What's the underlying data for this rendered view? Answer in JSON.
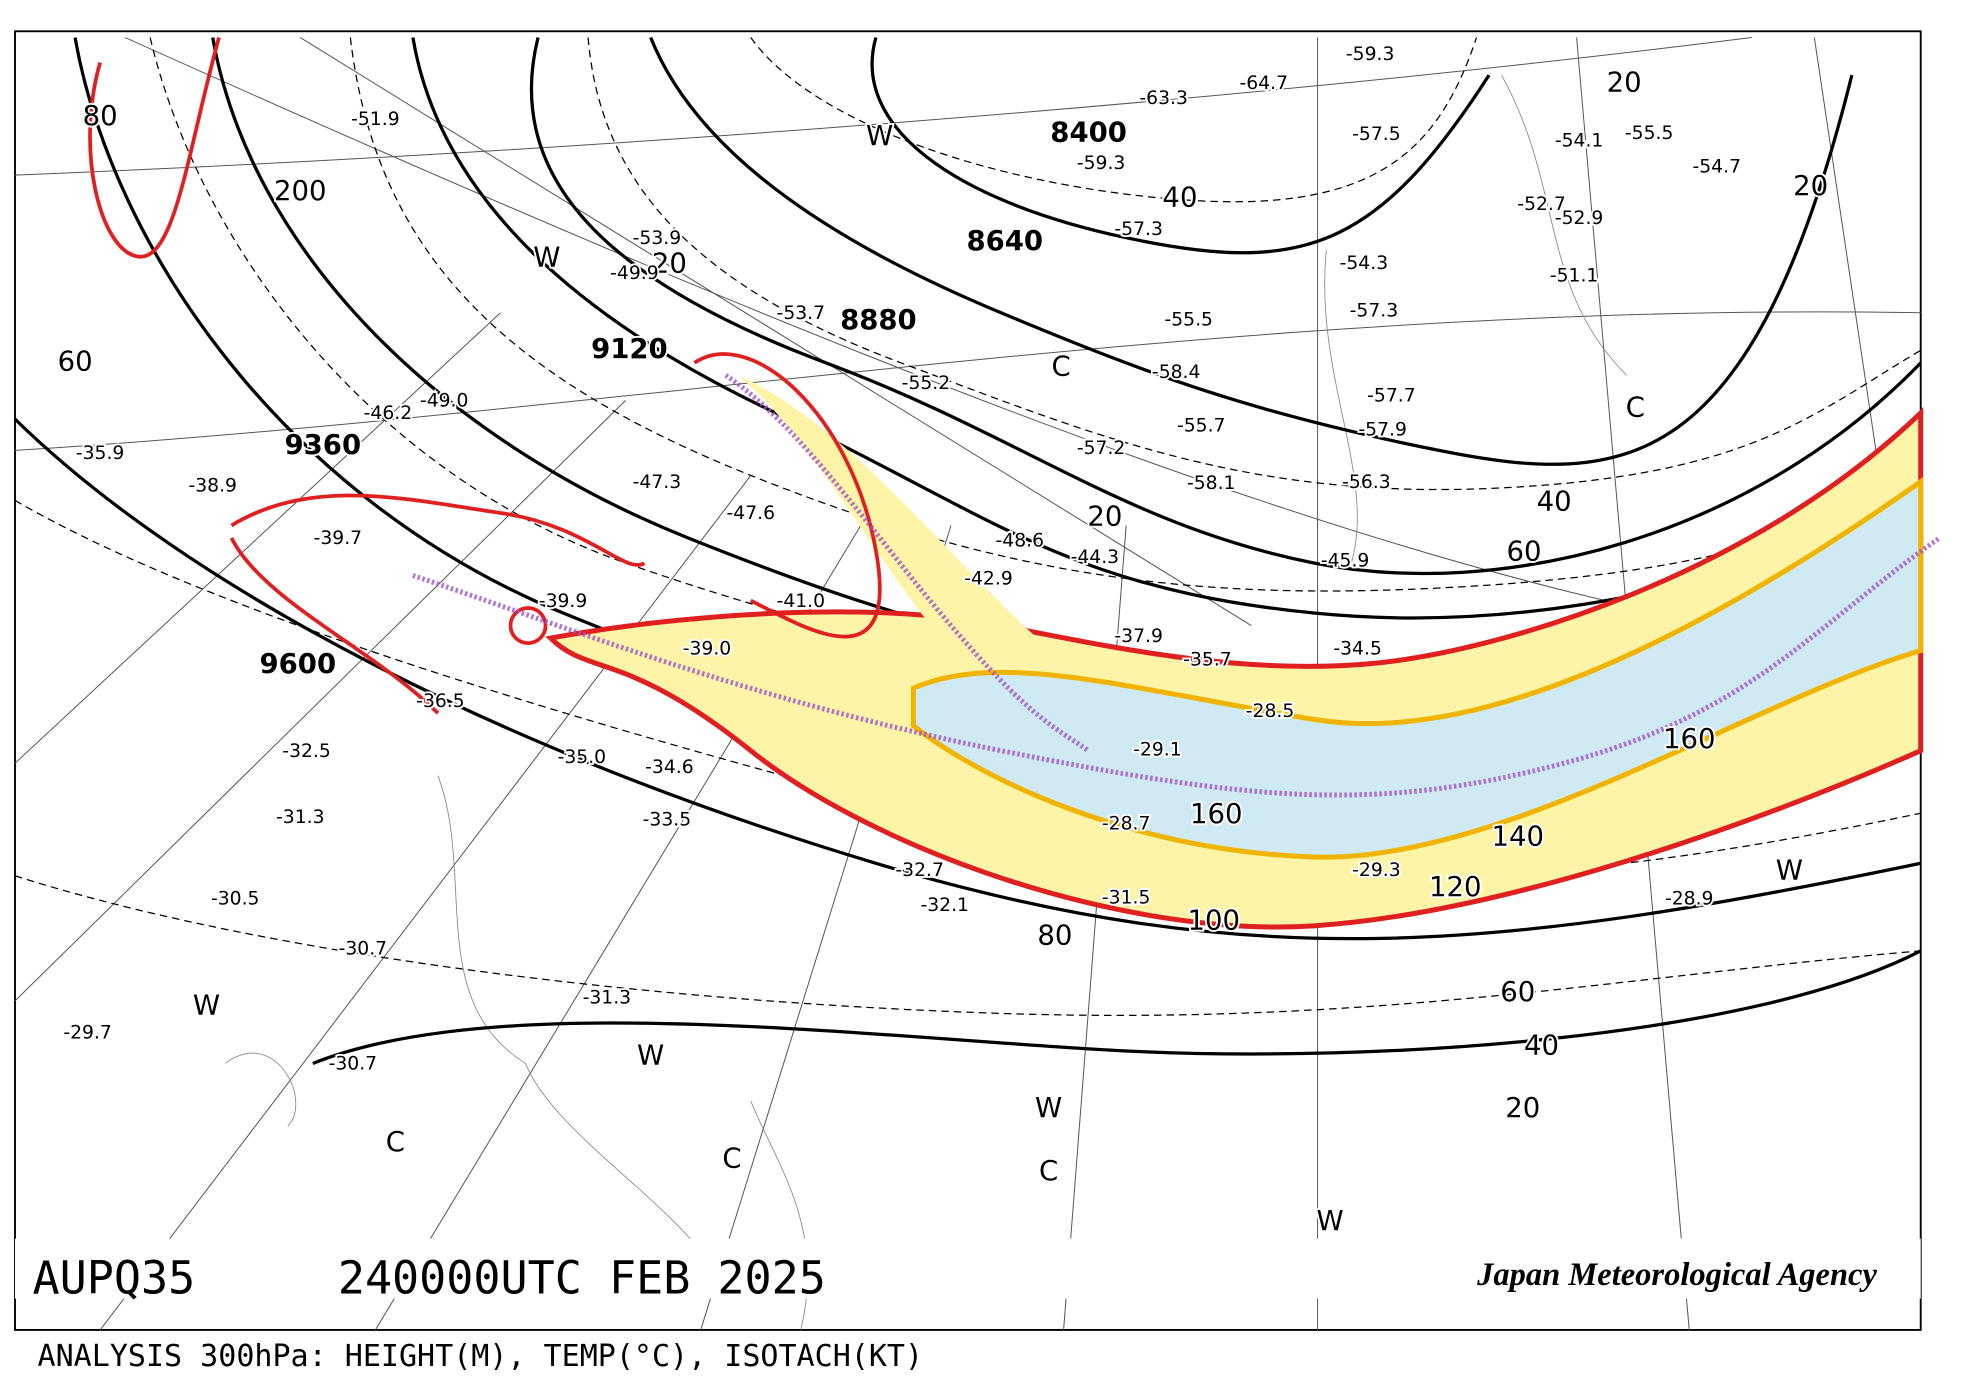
{
  "header": {
    "chart_id": "AUPQ35",
    "time": "240000UTC FEB 2025",
    "agency": "Japan Meteorological Agency",
    "caption": "ANALYSIS 300hPa: HEIGHT(M), TEMP(°C), ISOTACH(KT)"
  },
  "map": {
    "height_labels": [
      "8400",
      "8640",
      "8880",
      "9120",
      "9360",
      "9600"
    ],
    "isotach_labels": [
      "20",
      "20",
      "20",
      "20",
      "20",
      "40",
      "40",
      "40",
      "60",
      "60",
      "60",
      "80",
      "80",
      "100",
      "120",
      "140",
      "160",
      "160",
      "200"
    ],
    "pressure_centers": [
      "W",
      "W",
      "W",
      "W",
      "W",
      "W",
      "W",
      "C",
      "C",
      "C",
      "C",
      "C"
    ],
    "temperature_labels": [
      "-59.3",
      "-63.3",
      "-64.7",
      "-57.5",
      "-54.1",
      "-55.5",
      "-54.7",
      "-52.7",
      "-52.9",
      "-51.1",
      "-54.3",
      "-57.3",
      "-57.7",
      "-57.9",
      "-56.3",
      "-45.9",
      "-34.5",
      "-28.5",
      "-29.1",
      "-28.7",
      "-29.3",
      "-31.5",
      "-28.9",
      "-32.1",
      "-32.7",
      "-34.6",
      "-33.5",
      "-35.0",
      "-36.5",
      "-32.5",
      "-31.3",
      "-30.5",
      "-30.7",
      "-31.3",
      "-30.7",
      "-29.7",
      "-55.2",
      "-58.4",
      "-55.5",
      "-57.3",
      "-59.3",
      "-49.9",
      "-51.9",
      "-49.0",
      "-46.2",
      "-47.3",
      "-47.6",
      "-41.0",
      "-39.0",
      "-39.9",
      "-39.7",
      "-38.9",
      "-35.9",
      "-44.3",
      "-48.6",
      "-42.9",
      "-37.9",
      "-35.7",
      "-55.7",
      "-58.1",
      "-57.2",
      "-53.7",
      "-53.9"
    ]
  }
}
